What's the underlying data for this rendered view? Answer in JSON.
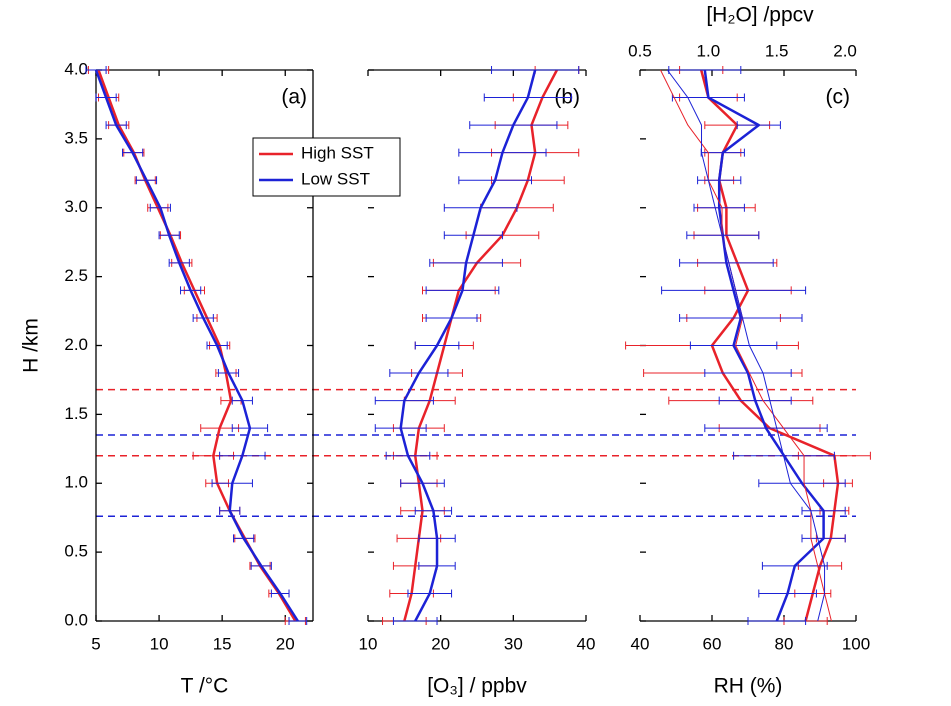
{
  "chart_data": [
    {
      "type": "line",
      "panel_label": "(a)",
      "xlabel": "T /°C",
      "ylabel": "H /km",
      "xlim": [
        5,
        22.2
      ],
      "xticks": [
        5,
        10,
        15,
        20
      ],
      "ylim": [
        0,
        4
      ],
      "yticks": [
        {
          "value": 0,
          "label": "0.0"
        },
        {
          "value": 0.5,
          "label": "0.5"
        },
        {
          "value": 1,
          "label": "1.0"
        },
        {
          "value": 1.5,
          "label": "1.5"
        },
        {
          "value": 2,
          "label": "2.0"
        },
        {
          "value": 2.5,
          "label": "2.5"
        },
        {
          "value": 3,
          "label": "3.0"
        },
        {
          "value": 3.5,
          "label": "3.5"
        },
        {
          "value": 4,
          "label": "4.0"
        }
      ],
      "y": [
        0,
        0.2,
        0.4,
        0.6,
        0.8,
        1.0,
        1.2,
        1.4,
        1.6,
        1.8,
        2.0,
        2.2,
        2.4,
        2.6,
        2.8,
        3.0,
        3.2,
        3.4,
        3.6,
        3.8,
        4.0
      ],
      "legend": "upper right",
      "series": [
        {
          "name": "High SST",
          "color": "#e8222a",
          "linewidth": 2.5,
          "values": [
            20.8,
            19.5,
            18.0,
            16.8,
            15.6,
            14.6,
            14.3,
            14.8,
            15.7,
            15.3,
            14.8,
            13.8,
            12.8,
            11.8,
            10.9,
            9.9,
            8.9,
            8.0,
            6.8,
            6.0,
            5.2
          ],
          "errors": [
            0.8,
            0.8,
            0.8,
            0.8,
            0.8,
            0.9,
            1.6,
            1.5,
            0.8,
            0.8,
            0.8,
            0.8,
            0.8,
            0.8,
            0.8,
            0.8,
            0.8,
            0.8,
            0.8,
            0.8,
            0.8
          ]
        },
        {
          "name": "Low SST",
          "color": "#1c22d6",
          "linewidth": 2.5,
          "values": [
            21.0,
            19.6,
            18.1,
            16.7,
            15.6,
            15.8,
            16.6,
            17.2,
            16.6,
            15.5,
            14.6,
            13.5,
            12.5,
            11.6,
            10.8,
            10.1,
            9.0,
            7.9,
            6.6,
            5.8,
            5.0
          ],
          "errors": [
            0.7,
            0.7,
            0.8,
            0.8,
            0.8,
            1.6,
            1.8,
            1.4,
            0.8,
            0.8,
            0.8,
            0.8,
            0.8,
            0.8,
            0.8,
            0.8,
            0.8,
            0.8,
            0.8,
            0.8,
            0.8
          ]
        }
      ]
    },
    {
      "type": "line",
      "panel_label": "(b)",
      "xlabel": "[O₃] / ppbv",
      "xlim": [
        10,
        40
      ],
      "xticks": [
        10,
        20,
        30,
        40
      ],
      "y": [
        0,
        0.2,
        0.4,
        0.6,
        0.8,
        1.0,
        1.2,
        1.4,
        1.6,
        1.8,
        2.0,
        2.2,
        2.4,
        2.6,
        2.8,
        3.0,
        3.2,
        3.4,
        3.6,
        3.8,
        4.0
      ],
      "series": [
        {
          "name": "High SST",
          "color": "#e8222a",
          "linewidth": 2.5,
          "values": [
            15.0,
            16.0,
            16.5,
            17.0,
            17.5,
            17.0,
            16.5,
            17.0,
            18.5,
            19.5,
            20.5,
            21.5,
            22.5,
            25.0,
            28.5,
            30.5,
            32.0,
            33.0,
            32.5,
            34.0,
            36.0
          ],
          "errors": [
            3,
            3,
            3,
            3,
            3,
            2.5,
            3,
            3.5,
            3.5,
            3.5,
            4,
            4,
            5,
            6,
            5,
            5,
            5,
            6,
            5,
            4,
            3
          ]
        },
        {
          "name": "Low SST",
          "color": "#1c22d6",
          "linewidth": 2.5,
          "values": [
            16.5,
            18.5,
            19.5,
            19.5,
            19.0,
            17.5,
            15.5,
            14.5,
            15.0,
            17.0,
            19.5,
            21.5,
            23.0,
            23.5,
            24.5,
            25.5,
            27.5,
            28.5,
            30.0,
            32.0,
            33.0
          ],
          "errors": [
            3,
            3,
            2.5,
            2.5,
            2.5,
            3,
            3,
            3.5,
            4,
            4,
            3,
            3.5,
            5,
            5,
            4,
            5,
            5,
            6,
            6,
            6,
            6
          ]
        }
      ]
    },
    {
      "type": "line",
      "panel_label": "(c)",
      "xlabel": "RH (%)",
      "x2label": "[H₂O] /ppcv",
      "xlim": [
        40,
        100
      ],
      "xticks": [
        40,
        60,
        80,
        100
      ],
      "x2lim": [
        0.5,
        2.08
      ],
      "x2ticks": [
        0.5,
        {
          "value": 1,
          "label": "1.0"
        },
        1.5,
        {
          "value": 2,
          "label": "2.0"
        }
      ],
      "y": [
        0,
        0.2,
        0.4,
        0.6,
        0.8,
        1.0,
        1.2,
        1.4,
        1.6,
        1.8,
        2.0,
        2.2,
        2.4,
        2.6,
        2.8,
        3.0,
        3.2,
        3.4,
        3.6,
        3.8,
        4.0
      ],
      "series": [
        {
          "name": "High SST",
          "color": "#e8222a",
          "linewidth": 2.5,
          "values": [
            86,
            88,
            90,
            93,
            94,
            95,
            94,
            76,
            68,
            63,
            60,
            66,
            70,
            67,
            64,
            64,
            62,
            63,
            67,
            59,
            57
          ],
          "errors": [
            6,
            5,
            6,
            4,
            4,
            4,
            10,
            14,
            20,
            22,
            24,
            13,
            12,
            11,
            9,
            8,
            4,
            5,
            9,
            8,
            6
          ]
        },
        {
          "name": "Low SST",
          "color": "#1c22d6",
          "linewidth": 2.5,
          "values": [
            78,
            81,
            83,
            91,
            91,
            85,
            80,
            75,
            72,
            70,
            66,
            68,
            66,
            64,
            63,
            62,
            62,
            63,
            73,
            59,
            58
          ],
          "errors": [
            8,
            8,
            9,
            6,
            6,
            12,
            14,
            17,
            10,
            12,
            12,
            17,
            20,
            13,
            10,
            7,
            6,
            6,
            6,
            10,
            10
          ]
        },
        {
          "name": "High SST",
          "color": "#e8222a",
          "linewidth": 1,
          "axis": "x2",
          "values": [
            1.9,
            1.85,
            1.8,
            1.75,
            1.75,
            1.7,
            1.7,
            1.55,
            1.4,
            1.3,
            1.2,
            1.25,
            1.2,
            1.15,
            1.1,
            1.1,
            1.0,
            1.0,
            0.85,
            0.75,
            0.65
          ]
        },
        {
          "name": "Low SST",
          "color": "#1c22d6",
          "linewidth": 1,
          "axis": "x2",
          "values": [
            1.8,
            1.85,
            1.85,
            1.8,
            1.75,
            1.6,
            1.55,
            1.5,
            1.45,
            1.4,
            1.3,
            1.25,
            1.2,
            1.15,
            1.1,
            1.05,
            1.0,
            0.95,
            0.95,
            0.85,
            0.7
          ]
        }
      ]
    }
  ],
  "hlines": [
    {
      "y": 1.68,
      "color": "#e8222a"
    },
    {
      "y": 1.35,
      "color": "#1c22d6"
    },
    {
      "y": 1.2,
      "color": "#e8222a"
    },
    {
      "y": 0.76,
      "color": "#1c22d6"
    }
  ]
}
